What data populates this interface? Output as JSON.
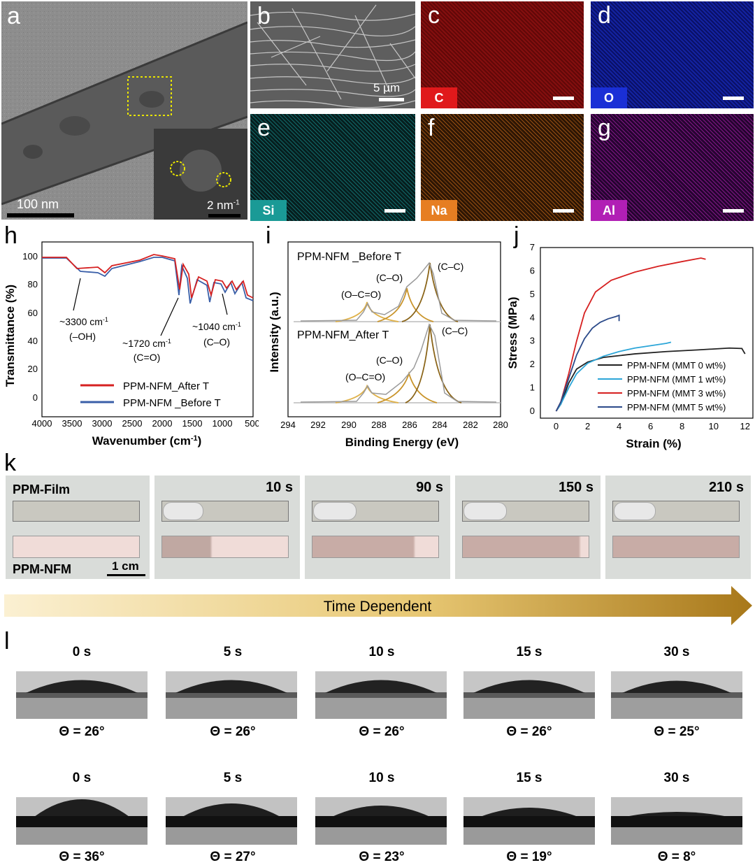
{
  "panels": {
    "a": "a",
    "b": "b",
    "c": "c",
    "d": "d",
    "e": "e",
    "f": "f",
    "g": "g",
    "h": "h",
    "i": "i",
    "j": "j",
    "k": "k",
    "l": "l"
  },
  "tem": {
    "scale_main": "100 nm",
    "scale_inset": "2 nm",
    "scale_inset_sup": "-1"
  },
  "sem": {
    "scale": "5 μm"
  },
  "edx": [
    {
      "id": "c",
      "element": "C",
      "color": "#e0191b",
      "bg": "#7a0a0a"
    },
    {
      "id": "d",
      "element": "O",
      "color": "#1a2fd6",
      "bg": "#0c1580"
    },
    {
      "id": "e",
      "element": "Si",
      "color": "#1a9a96",
      "bg": "#082a2a"
    },
    {
      "id": "f",
      "element": "Na",
      "color": "#e67e22",
      "bg": "#3a1d05"
    },
    {
      "id": "g",
      "element": "Al",
      "color": "#b11fb5",
      "bg": "#33063a"
    }
  ],
  "ftir": {
    "ylabel": "Transmittance (%)",
    "xlabel_main": "Wavenumber (cm",
    "xlabel_sup": "-1",
    "xlabel_end": ")",
    "xticks": [
      "4000",
      "3500",
      "3000",
      "2500",
      "2000",
      "1500",
      "1000",
      "500"
    ],
    "yticks": [
      "100",
      "80",
      "60",
      "40",
      "20",
      "0"
    ],
    "ann1": "~3300 cm",
    "ann1b": "(–OH)",
    "ann2": "~1720 cm",
    "ann2b": "(C=O)",
    "ann3": "~1040 cm",
    "ann3b": "(C–O)",
    "sup": "-1",
    "legend": [
      {
        "name": "PPM-NFM_After T",
        "color": "#d62020"
      },
      {
        "name": "PPM-NFM _Before T",
        "color": "#3a5fa8"
      }
    ]
  },
  "xps": {
    "ylabel": "Intensity (a.u.)",
    "xlabel": "Binding Energy (eV)",
    "xticks": [
      "294",
      "292",
      "290",
      "288",
      "286",
      "284",
      "282",
      "280"
    ],
    "top_title": "PPM-NFM _Before T",
    "bot_title": "PPM-NFM_After T",
    "peak_cc": "(C–C)",
    "peak_co": "(C–O)",
    "peak_oco": "(O–C=O)"
  },
  "chart_data": {
    "type": "line",
    "title": "",
    "xlabel": "Strain (%)",
    "ylabel": "Stress (MPa)",
    "xlim": [
      -1,
      12.5
    ],
    "ylim": [
      -0.3,
      7
    ],
    "xticks": [
      "0",
      "2",
      "4",
      "6",
      "8",
      "10",
      "12"
    ],
    "yticks": [
      "0",
      "1",
      "2",
      "3",
      "4",
      "5",
      "6",
      "7"
    ],
    "series": [
      {
        "name": "PPM-NFM (MMT 0 wt%)",
        "color": "#222222",
        "x": [
          0,
          0.3,
          0.8,
          1.3,
          2,
          3,
          5,
          7,
          9,
          11,
          11.8,
          12
        ],
        "y": [
          0,
          0.3,
          1.2,
          1.8,
          2.1,
          2.3,
          2.45,
          2.55,
          2.62,
          2.7,
          2.68,
          2.45
        ]
      },
      {
        "name": "PPM-NFM (MMT 1 wt%)",
        "color": "#2ca6d8",
        "x": [
          0,
          0.3,
          0.8,
          1.3,
          2,
          3,
          4,
          5,
          6,
          7,
          7.3
        ],
        "y": [
          0,
          0.3,
          1.0,
          1.6,
          2.05,
          2.35,
          2.55,
          2.7,
          2.8,
          2.9,
          2.95
        ]
      },
      {
        "name": "PPM-NFM (MMT 3 wt%)",
        "color": "#d62020",
        "x": [
          0,
          0.3,
          0.8,
          1.3,
          1.8,
          2.5,
          3.5,
          5,
          6.5,
          8,
          9.2,
          9.5
        ],
        "y": [
          0,
          0.4,
          1.6,
          3.0,
          4.2,
          5.1,
          5.6,
          5.95,
          6.2,
          6.4,
          6.55,
          6.5
        ]
      },
      {
        "name": "PPM-NFM (MMT 5 wt%)",
        "color": "#2b4a8a",
        "x": [
          0,
          0.3,
          0.8,
          1.3,
          1.8,
          2.3,
          2.8,
          3.3,
          3.8,
          4.0,
          4.0
        ],
        "y": [
          0,
          0.4,
          1.4,
          2.4,
          3.1,
          3.55,
          3.8,
          3.95,
          4.05,
          4.1,
          3.85
        ]
      }
    ]
  },
  "timelapse": {
    "film_label": "PPM-Film",
    "nfm_label": "PPM-NFM",
    "scale": "1 cm",
    "times": [
      "10 s",
      "90 s",
      "150 s",
      "210 s"
    ],
    "arrow_label": "Time Dependent"
  },
  "contact_angle": {
    "row1": [
      {
        "time": "0 s",
        "angle": "Θ = 26°"
      },
      {
        "time": "5 s",
        "angle": "Θ = 26°"
      },
      {
        "time": "10 s",
        "angle": "Θ = 26°"
      },
      {
        "time": "15 s",
        "angle": "Θ = 26°"
      },
      {
        "time": "30 s",
        "angle": "Θ = 25°"
      }
    ],
    "row2": [
      {
        "time": "0 s",
        "angle": "Θ = 36°"
      },
      {
        "time": "5 s",
        "angle": "Θ = 27°"
      },
      {
        "time": "10 s",
        "angle": "Θ = 23°"
      },
      {
        "time": "15 s",
        "angle": "Θ = 19°"
      },
      {
        "time": "30 s",
        "angle": "Θ = 8°"
      }
    ]
  }
}
